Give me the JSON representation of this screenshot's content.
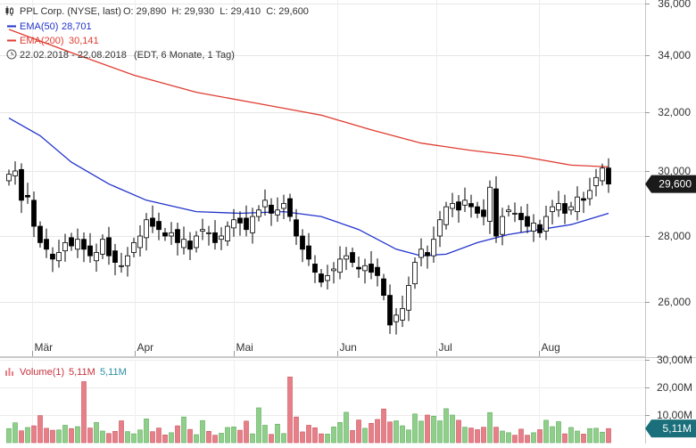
{
  "colors": {
    "ema50": "#2233cc",
    "ema200": "#e03c31",
    "up": "#ffffff",
    "down": "#000000",
    "vol_up": "#8fcf8a",
    "vol_down": "#e77f88",
    "badge_price": "#1a1a1a",
    "badge_vol": "#1a6f7a"
  },
  "legend": {
    "title": "PPL Corp. (NYSE, last)",
    "ohlc": "O: 29,890  H: 29,930  L: 29,410  C: 29,600",
    "ema50_label": "EMA(50)",
    "ema50_value": "28,701",
    "ema200_label": "EMA(200)",
    "ema200_value": "30,141",
    "range_text": "22.02.2018 - 22.08.2018",
    "period_text": "(EDT, 6 Monate, 1 Tag)",
    "icons": [
      "candlestick-icon",
      "clock-icon"
    ]
  },
  "price_badge": "29,600",
  "volume_legend": {
    "label": "Volume(1)",
    "value1": "5,11M",
    "value2": "5,11M",
    "icon": "volume-bars-icon"
  },
  "volume_badge": "5,11M",
  "chart_data": [
    {
      "type": "candlestick",
      "title": "PPL Corp. (NYSE, last)",
      "y_axis_side": "right",
      "ylim": [
        25.0,
        36.0
      ],
      "y_ticks": [
        "26,000",
        "28,000",
        "30,000",
        "32,000",
        "34,000",
        "36,000"
      ],
      "y_tick_values": [
        26,
        28,
        30,
        32,
        34,
        36
      ],
      "x_range": [
        "2018-02-22",
        "2018-08-22"
      ],
      "x_ticks": [
        {
          "label": "Mär",
          "date": "2018-03-01"
        },
        {
          "label": "Apr",
          "date": "2018-04-01"
        },
        {
          "label": "Mai",
          "date": "2018-05-01"
        },
        {
          "label": "Jun",
          "date": "2018-06-01"
        },
        {
          "label": "Jul",
          "date": "2018-07-01"
        },
        {
          "label": "Aug",
          "date": "2018-08-01"
        }
      ],
      "grid": true,
      "last_close": 29.6,
      "close": [
        29.9,
        30.0,
        29.1,
        29.2,
        28.3,
        27.8,
        27.6,
        27.3,
        27.5,
        27.8,
        27.7,
        27.9,
        27.6,
        27.4,
        27.5,
        27.9,
        27.4,
        27.2,
        27.1,
        27.4,
        27.8,
        28.0,
        28.5,
        28.3,
        28.2,
        28.0,
        28.1,
        27.8,
        27.9,
        27.6,
        28.0,
        28.2,
        28.1,
        27.8,
        28.0,
        28.3,
        28.5,
        28.4,
        28.2,
        28.6,
        28.8,
        29.1,
        28.7,
        28.8,
        29.0,
        28.6,
        28.0,
        27.6,
        27.3,
        26.9,
        26.6,
        26.8,
        27.0,
        27.3,
        27.4,
        27.2,
        27.0,
        27.1,
        26.9,
        26.8,
        26.2,
        25.3,
        25.6,
        25.8,
        26.5,
        27.2,
        27.6,
        27.4,
        27.9,
        28.5,
        28.9,
        29.0,
        28.8,
        29.1,
        28.9,
        28.7,
        28.6,
        29.5,
        28.0,
        28.6,
        28.8,
        28.7,
        28.5,
        28.3,
        28.4,
        28.1,
        28.6,
        28.9,
        29.0,
        28.7,
        28.9,
        29.2,
        29.1,
        29.4,
        29.8,
        30.1,
        29.6
      ],
      "series": [
        {
          "name": "EMA(50)",
          "color_key": "ema50",
          "points": [
            [
              0,
              31.8
            ],
            [
              5,
              31.2
            ],
            [
              10,
              30.3
            ],
            [
              16,
              29.6
            ],
            [
              22,
              29.1
            ],
            [
              30,
              28.75
            ],
            [
              37,
              28.7
            ],
            [
              44,
              28.75
            ],
            [
              50,
              28.6
            ],
            [
              56,
              28.2
            ],
            [
              62,
              27.6
            ],
            [
              66,
              27.4
            ],
            [
              70,
              27.45
            ],
            [
              75,
              27.8
            ],
            [
              80,
              28.05
            ],
            [
              85,
              28.2
            ],
            [
              90,
              28.35
            ],
            [
              96,
              28.7
            ]
          ]
        },
        {
          "name": "EMA(200)",
          "color_key": "ema200",
          "points": [
            [
              0,
              35.0
            ],
            [
              10,
              34.1
            ],
            [
              20,
              33.3
            ],
            [
              30,
              32.7
            ],
            [
              40,
              32.3
            ],
            [
              50,
              31.9
            ],
            [
              58,
              31.4
            ],
            [
              66,
              30.95
            ],
            [
              74,
              30.7
            ],
            [
              82,
              30.5
            ],
            [
              90,
              30.2
            ],
            [
              96,
              30.14
            ]
          ]
        }
      ]
    },
    {
      "type": "bar",
      "title": "Volume(1)",
      "ylim": [
        0,
        30
      ],
      "y_ticks": [
        "10,00M",
        "20,00M",
        "30,00M"
      ],
      "y_tick_values": [
        10,
        20,
        30
      ],
      "last_value": 5.11,
      "values": [
        5.1,
        7.2,
        4.3,
        5.5,
        6.1,
        9.8,
        5.2,
        4.5,
        4.6,
        6.3,
        5.1,
        5.8,
        22.1,
        5.3,
        7.3,
        4.2,
        3.3,
        4.1,
        7.9,
        4.0,
        3.2,
        4.6,
        8.6,
        4.0,
        5.3,
        2.8,
        3.6,
        6.1,
        9.3,
        4.8,
        2.9,
        8.0,
        4.1,
        2.7,
        3.4,
        5.5,
        5.7,
        4.5,
        7.8,
        3.2,
        12.6,
        6.3,
        3.0,
        6.7,
        3.3,
        23.8,
        9.3,
        3.9,
        6.3,
        5.4,
        3.2,
        3.1,
        5.7,
        7.3,
        11.0,
        4.4,
        8.2,
        5.2,
        7.0,
        8.4,
        12.2,
        7.5,
        7.9,
        6.1,
        4.6,
        10.4,
        7.8,
        10.0,
        9.6,
        7.9,
        12.3,
        10.0,
        8.1,
        5.6,
        5.3,
        4.7,
        5.6,
        10.9,
        5.6,
        4.2,
        3.6,
        2.7,
        4.9,
        2.7,
        3.6,
        4.7,
        8.1,
        5.8,
        7.6,
        3.2,
        5.5,
        4.2,
        3.1,
        5.1,
        5.2,
        3.8,
        5.1
      ]
    }
  ]
}
